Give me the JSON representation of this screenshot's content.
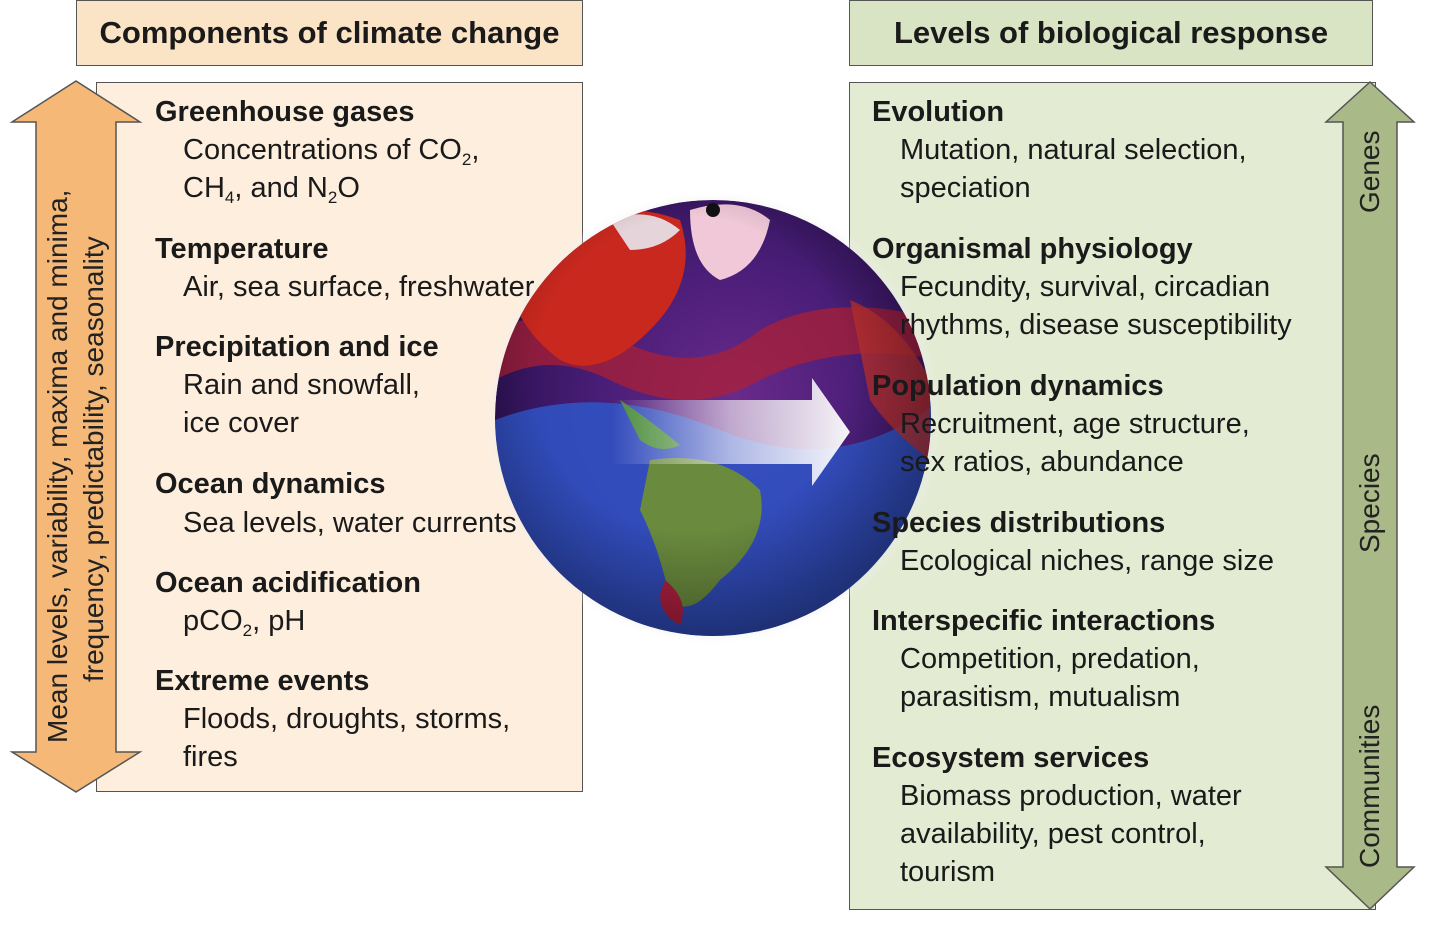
{
  "left": {
    "title": "Components of climate change",
    "axis_label_line1": "Mean levels, variability, maxima and minima,",
    "axis_label_line2": "frequency, predictability, seasonality",
    "items": [
      {
        "heading": "Greenhouse gases",
        "line1": "Concentrations of CO",
        "line1_sub": "2",
        "line1_tail": ",",
        "line2a": "CH",
        "line2a_sub": "4",
        "line2b": ", and N",
        "line2b_sub": "2",
        "line2c": "O"
      },
      {
        "heading": "Temperature",
        "line1": "Air, sea surface, freshwater"
      },
      {
        "heading": "Precipitation and ice",
        "line1": "Rain and snowfall,",
        "line2": "ice cover"
      },
      {
        "heading": "Ocean dynamics",
        "line1": "Sea levels, water currents"
      },
      {
        "heading": "Ocean acidification",
        "line1": "pCO",
        "line1_sub": "2",
        "line1_tail": ", pH"
      },
      {
        "heading": "Extreme events",
        "line1": "Floods, droughts, storms,",
        "line2": "fires"
      }
    ]
  },
  "right": {
    "title": "Levels of biological response",
    "scale_labels": {
      "top": "Genes",
      "middle": "Species",
      "bottom": "Communities"
    },
    "items": [
      {
        "heading": "Evolution",
        "line1": "Mutation, natural selection,",
        "line2": "speciation"
      },
      {
        "heading": "Organismal physiology",
        "line1": "Fecundity, survival, circadian",
        "line2": "rhythms, disease susceptibility"
      },
      {
        "heading": "Population dynamics",
        "line1": "Recruitment, age structure,",
        "line2": "sex ratios, abundance"
      },
      {
        "heading": "Species distributions",
        "line1": "Ecological niches, range size"
      },
      {
        "heading": "Interspecific interactions",
        "line1": "Competition, predation,",
        "line2": "parasitism, mutualism"
      },
      {
        "heading": "Ecosystem services",
        "line1": "Biomass production, water",
        "line2": "availability, pest control,",
        "line3": "tourism"
      }
    ]
  },
  "colors": {
    "left_title_bg": "#fbe3c6",
    "left_panel_bg": "#fdeedd",
    "left_arrow": "#f5b877",
    "right_title_bg": "#d9e4c4",
    "right_panel_bg": "#e3ebd3",
    "right_arrow": "#a9b987"
  },
  "center_image": "globe-with-arrow"
}
